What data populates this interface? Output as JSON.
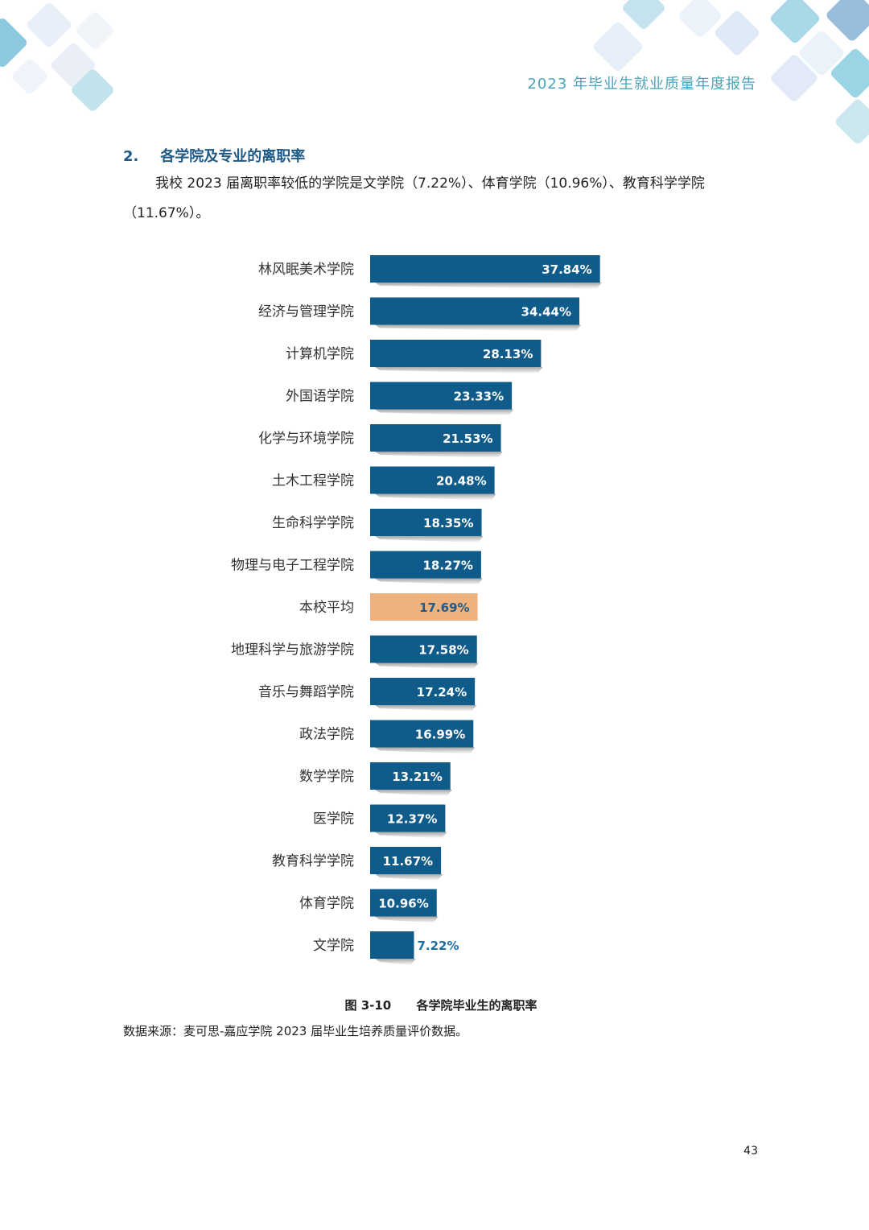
{
  "header": {
    "title": "2023 年毕业生就业质量年度报告"
  },
  "section": {
    "number": "2.",
    "title": "各学院及专业的离职率",
    "intro": "我校 2023 届离职率较低的学院是文学院（7.22%）、体育学院（10.96%）、教育科学学院（11.67%）。"
  },
  "colors": {
    "bar": "#0f5b8a",
    "average_bar": "#efb27e",
    "value_label_inside": "#ffffff",
    "value_label_average": "#1f5a86",
    "value_label_outside": "#1f6fa5",
    "heading": "#1f5a86",
    "header_title": "#4aa3b8"
  },
  "chart_data": {
    "type": "bar",
    "orientation": "horizontal",
    "categories": [
      "林风眠美术学院",
      "经济与管理学院",
      "计算机学院",
      "外国语学院",
      "化学与环境学院",
      "土木工程学院",
      "生命科学学院",
      "物理与电子工程学院",
      "本校平均",
      "地理科学与旅游学院",
      "音乐与舞蹈学院",
      "政法学院",
      "数学学院",
      "医学院",
      "教育科学学院",
      "体育学院",
      "文学院"
    ],
    "values": [
      37.84,
      34.44,
      28.13,
      23.33,
      21.53,
      20.48,
      18.35,
      18.27,
      17.69,
      17.58,
      17.24,
      16.99,
      13.21,
      12.37,
      11.67,
      10.96,
      7.22
    ],
    "labels": [
      "37.84%",
      "34.44%",
      "28.13%",
      "23.33%",
      "21.53%",
      "20.48%",
      "18.35%",
      "18.27%",
      "17.69%",
      "17.58%",
      "17.24%",
      "16.99%",
      "13.21%",
      "12.37%",
      "11.67%",
      "10.96%",
      "7.22%"
    ],
    "highlight": "本校平均",
    "unit": "%",
    "grid": false,
    "legend": "none"
  },
  "figure": {
    "number": "图 3-10",
    "title": "各学院毕业生的离职率"
  },
  "source": "数据来源：麦可思-嘉应学院 2023 届毕业生培养质量评价数据。",
  "page_number": "43"
}
